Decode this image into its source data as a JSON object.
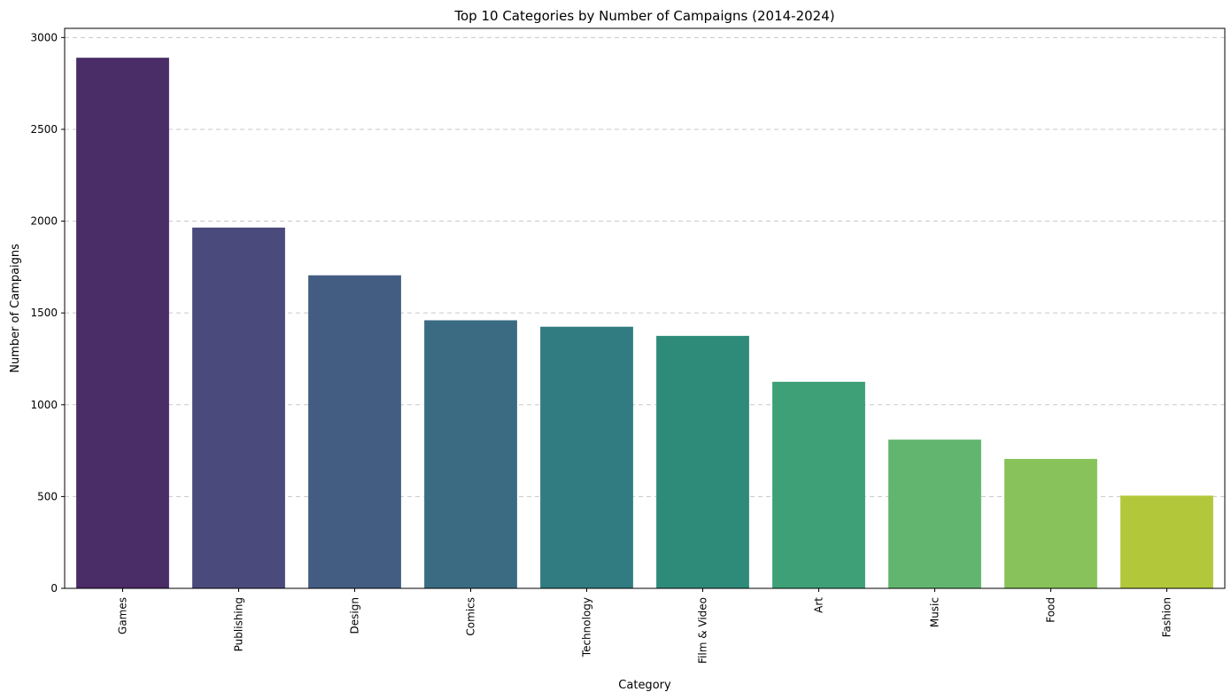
{
  "chart_data": {
    "type": "bar",
    "title": "Top 10 Categories by Number of Campaigns (2014-2024)",
    "xlabel": "Category",
    "ylabel": "Number of Campaigns",
    "categories": [
      "Games",
      "Publishing",
      "Design",
      "Comics",
      "Technology",
      "Film & Video",
      "Art",
      "Music",
      "Food",
      "Fashion"
    ],
    "values": [
      2890,
      1965,
      1705,
      1460,
      1425,
      1375,
      1125,
      810,
      705,
      505
    ],
    "colors": [
      "#4a2c66",
      "#4a4a7d",
      "#435c82",
      "#3a6b82",
      "#317c80",
      "#2e8b7a",
      "#3ea077",
      "#62b56f",
      "#88c25a",
      "#b2c83a"
    ],
    "ylim": [
      0,
      3050
    ],
    "yticks": [
      0,
      500,
      1000,
      1500,
      2000,
      2500,
      3000
    ],
    "grid": "y-dashed",
    "legend": "none"
  }
}
